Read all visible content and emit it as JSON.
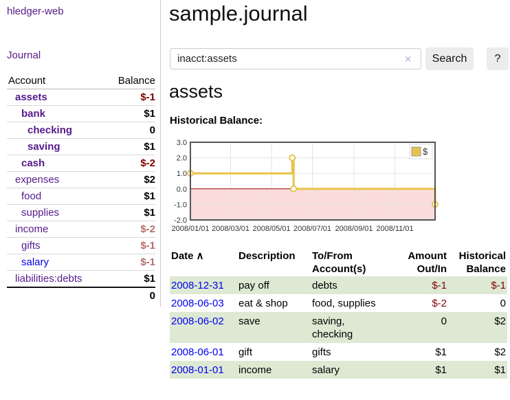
{
  "sidebar": {
    "app_title": "hledger-web",
    "nav": {
      "journal_label": "Journal"
    },
    "accounts_table": {
      "headers": {
        "account": "Account",
        "balance": "Balance"
      },
      "rows": [
        {
          "name": "assets",
          "balance": "$-1"
        },
        {
          "name": "bank",
          "balance": "$1"
        },
        {
          "name": "checking",
          "balance": "0"
        },
        {
          "name": "saving",
          "balance": "$1"
        },
        {
          "name": "cash",
          "balance": "$-2"
        },
        {
          "name": "expenses",
          "balance": "$2"
        },
        {
          "name": "food",
          "balance": "$1"
        },
        {
          "name": "supplies",
          "balance": "$1"
        },
        {
          "name": "income",
          "balance": "$-2"
        },
        {
          "name": "gifts",
          "balance": "$-1"
        },
        {
          "name": "salary",
          "balance": "$-1"
        },
        {
          "name": "liabilities:debts",
          "balance": "$1"
        }
      ],
      "total": "0"
    }
  },
  "header": {
    "title": "sample.journal"
  },
  "search": {
    "value": "inacct:assets",
    "clear_icon": "×",
    "button_label": "Search",
    "help_label": "?"
  },
  "account_page": {
    "heading": "assets",
    "chart_title": "Historical Balance:"
  },
  "chart_data": {
    "type": "step-line",
    "title": "Historical Balance:",
    "legend_label": "$",
    "legend_position": "top-right",
    "x_max_days": 365,
    "ylim": [
      -2,
      3
    ],
    "points": [
      [
        0,
        1
      ],
      [
        152,
        2
      ],
      [
        154,
        0
      ],
      [
        365,
        -1
      ]
    ],
    "points_dated": [
      [
        "2008-01-01",
        1
      ],
      [
        "2008-06-01",
        2
      ],
      [
        "2008-06-03",
        0
      ],
      [
        "2008-12-31",
        -1
      ]
    ],
    "yticks": [
      {
        "v": 3,
        "label": "3.0"
      },
      {
        "v": 2,
        "label": "2.0"
      },
      {
        "v": 1,
        "label": "1.0"
      },
      {
        "v": 0,
        "label": "0.0"
      },
      {
        "v": -1,
        "label": "-1.0"
      },
      {
        "v": -2,
        "label": "-2.0"
      }
    ],
    "xticks": [
      {
        "day": 0,
        "label": "2008/01/01"
      },
      {
        "day": 60,
        "label": "2008/03/01"
      },
      {
        "day": 121,
        "label": "2008/05/01"
      },
      {
        "day": 182,
        "label": "2008/07/01"
      },
      {
        "day": 244,
        "label": "2008/09/01"
      },
      {
        "day": 305,
        "label": "2008/11/01"
      }
    ],
    "colors": {
      "line": "#e8c34a",
      "below_zero_fill": "#fbdcdc",
      "zero_line": "#8b0000",
      "grid": "#e3e3e3",
      "border": "#545454"
    }
  },
  "register_table": {
    "headers": {
      "date": "Date",
      "sort_icon": "∧",
      "description": "Description",
      "tofrom_line1": "To/From",
      "tofrom_line2": "Account(s)",
      "amount_line1": "Amount",
      "amount_line2": "Out/In",
      "balance_line1": "Historical",
      "balance_line2": "Balance"
    },
    "rows": [
      {
        "date": "2008-12-31",
        "description": "pay off",
        "accounts": [
          "debts"
        ],
        "amount": "$-1",
        "balance": "$-1"
      },
      {
        "date": "2008-06-03",
        "description": "eat & shop",
        "accounts": [
          "food, supplies"
        ],
        "amount": "$-2",
        "balance": "0"
      },
      {
        "date": "2008-06-02",
        "description": "save",
        "accounts": [
          "saving,",
          "checking"
        ],
        "amount": "0",
        "balance": "$2"
      },
      {
        "date": "2008-06-01",
        "description": "gift",
        "accounts": [
          "gifts"
        ],
        "amount": "$1",
        "balance": "$2"
      },
      {
        "date": "2008-01-01",
        "description": "income",
        "accounts": [
          "salary"
        ],
        "amount": "$1",
        "balance": "$1"
      }
    ]
  }
}
